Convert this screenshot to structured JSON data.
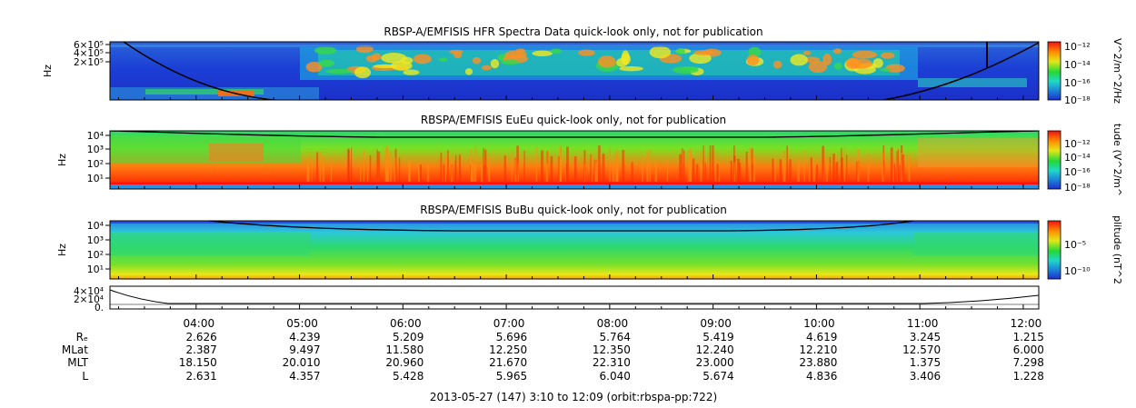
{
  "panels": [
    {
      "title": "RBSP-A/EMFISIS  HFR Spectra Data quick-look only, not for publication",
      "ylabel": "Hz",
      "ytick_labels": [
        "6×10⁵",
        "4×10⁵",
        "2×10⁵"
      ],
      "colorbar_label": "V^2/m^2/Hz",
      "colorbar_ticks": [
        "10⁻¹²",
        "10⁻¹⁴",
        "10⁻¹⁶",
        "10⁻¹⁸"
      ]
    },
    {
      "title": "RBSPA/EMFISIS  EuEu quick-look only, not for publication",
      "ylabel": "Hz",
      "ytick_labels": [
        "10⁴",
        "10³",
        "10²",
        "10¹"
      ],
      "colorbar_label": "tude (V^2/m^",
      "colorbar_ticks": [
        "10⁻¹²",
        "10⁻¹⁴",
        "10⁻¹⁶",
        "10⁻¹⁸"
      ]
    },
    {
      "title": "RBSPA/EMFISIS  BuBu quick-look only, not for publication",
      "ylabel": "Hz",
      "ytick_labels": [
        "10⁴",
        "10³",
        "10²",
        "10¹"
      ],
      "colorbar_label": "plitude (nT^2",
      "colorbar_ticks": [
        "10⁻⁵",
        "10⁻¹⁰"
      ]
    },
    {
      "title": "",
      "ylabel": "",
      "ytick_labels": [
        "4×10⁴",
        "2×10⁴",
        "0."
      ]
    }
  ],
  "colors": {
    "spectrogram_low": "#1c2fd8",
    "spectrogram_mid": "#23d840",
    "spectrogram_high": "#ff2000",
    "boundary_line": "#000000"
  },
  "chart_data": {
    "type": "heatmap",
    "x_axis": {
      "ticks": [
        "04:00",
        "05:00",
        "06:00",
        "07:00",
        "08:00",
        "09:00",
        "10:00",
        "11:00",
        "12:00"
      ],
      "range": [
        "03:10",
        "12:09"
      ]
    },
    "ephemeris": [
      {
        "label": "Rₑ",
        "values": [
          "2.626",
          "4.239",
          "5.209",
          "5.696",
          "5.764",
          "5.419",
          "4.619",
          "3.245",
          "1.215"
        ]
      },
      {
        "label": "MLat",
        "values": [
          "2.387",
          "9.497",
          "11.580",
          "12.250",
          "12.350",
          "12.240",
          "12.210",
          "12.570",
          "6.000"
        ]
      },
      {
        "label": "MLT",
        "values": [
          "18.150",
          "20.010",
          "20.960",
          "21.670",
          "22.310",
          "23.000",
          "23.880",
          "1.375",
          "7.298"
        ]
      },
      {
        "label": "L",
        "values": [
          "2.631",
          "4.357",
          "5.428",
          "5.965",
          "6.040",
          "5.674",
          "4.836",
          "3.406",
          "1.228"
        ]
      }
    ],
    "footer": "2013-05-27 (147) 3:10 to 12:09 (orbit:rbspa-pp:722)"
  }
}
